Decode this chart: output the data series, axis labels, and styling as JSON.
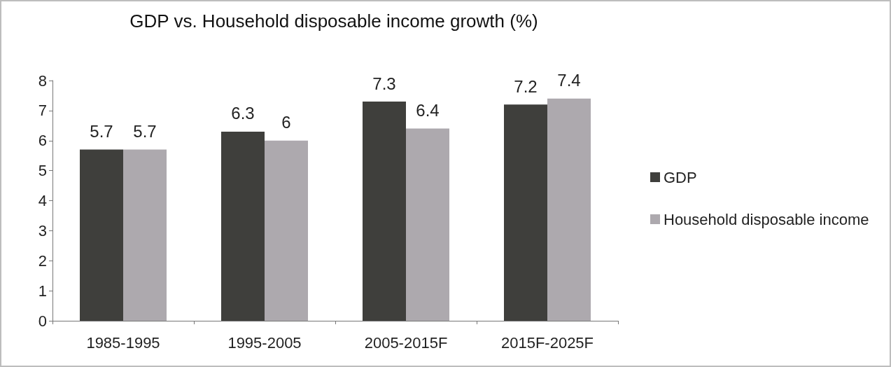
{
  "chart_data": {
    "type": "bar",
    "title": "GDP vs. Household disposable income growth (%)",
    "categories": [
      "1985-1995",
      "1995-2005",
      "2005-2015F",
      "2015F-2025F"
    ],
    "series": [
      {
        "name": "GDP",
        "color": "#3f3f3c",
        "values": [
          5.7,
          6.3,
          7.3,
          7.2
        ]
      },
      {
        "name": "Household disposable income",
        "color": "#ada9ae",
        "values": [
          5.7,
          6,
          6.4,
          7.4
        ]
      }
    ],
    "ylim": [
      0,
      8
    ],
    "yticks": [
      0,
      1,
      2,
      3,
      4,
      5,
      6,
      7,
      8
    ],
    "grid": false,
    "legend": "right",
    "data_labels": true
  }
}
